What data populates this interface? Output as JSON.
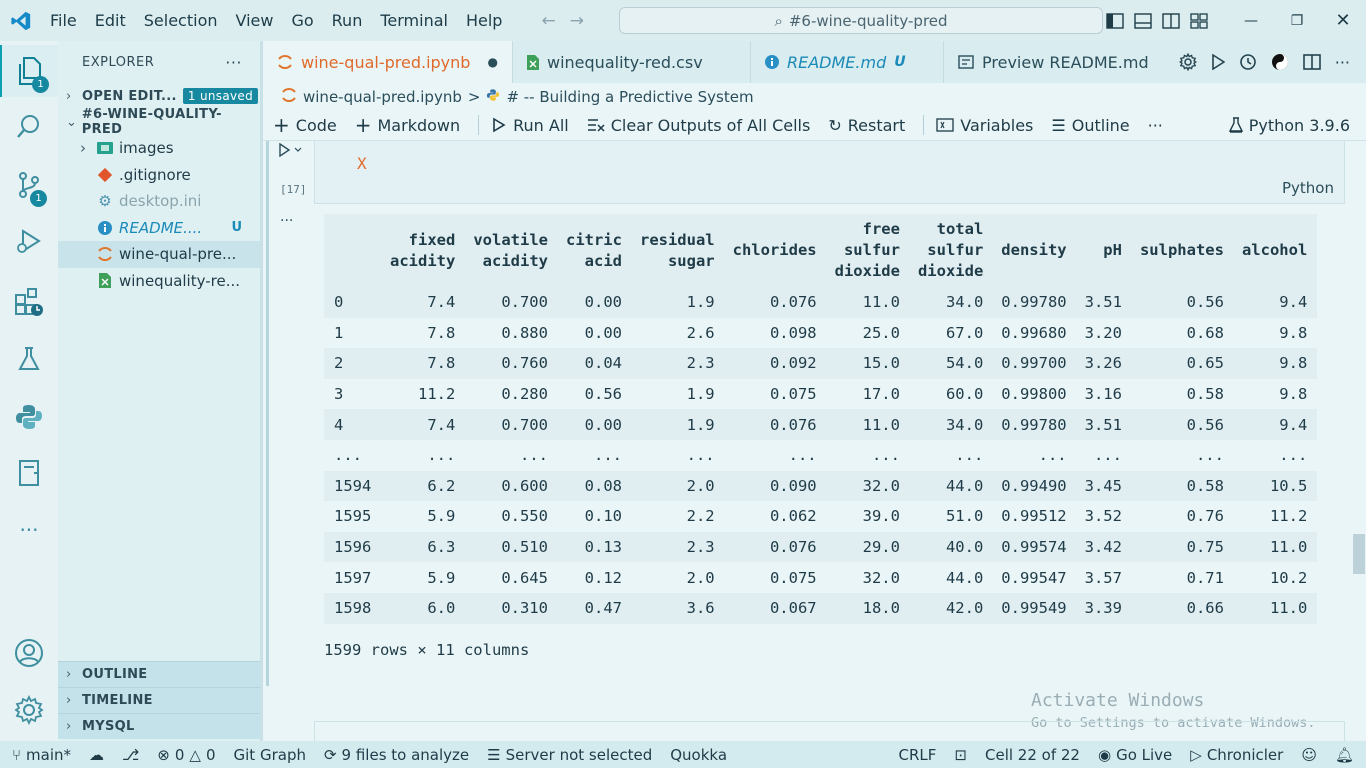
{
  "menu": [
    "File",
    "Edit",
    "Selection",
    "View",
    "Go",
    "Run",
    "Terminal",
    "Help"
  ],
  "search": {
    "text": "#6-wine-quality-pred"
  },
  "sidebar": {
    "title": "EXPLORER",
    "open_editors": "OPEN EDIT...",
    "unsaved": "1 unsaved",
    "folder": "#6-WINE-QUALITY-PRED",
    "items": [
      {
        "label": "images"
      },
      {
        "label": ".gitignore"
      },
      {
        "label": "desktop.ini"
      },
      {
        "label": "README....",
        "status": "U"
      },
      {
        "label": "wine-qual-pre..."
      },
      {
        "label": "winequality-re..."
      }
    ],
    "outline": "OUTLINE",
    "timeline": "TIMELINE",
    "mysql": "MYSQL"
  },
  "activity_badges": {
    "explorer": "1",
    "scm": "1"
  },
  "tabs": [
    {
      "label": "wine-qual-pred.ipynb",
      "modified_dot": "●"
    },
    {
      "label": "winequality-red.csv"
    },
    {
      "label": "README.md",
      "status": "U"
    },
    {
      "label": "Preview README.md"
    }
  ],
  "breadcrumb": {
    "file": "wine-qual-pred.ipynb",
    "sep": ">",
    "section": "# -- Building a Predictive System"
  },
  "toolbar": {
    "code": "Code",
    "markdown": "Markdown",
    "run_all": "Run All",
    "clear_outputs": "Clear Outputs of All Cells",
    "restart": "Restart",
    "variables": "Variables",
    "outline": "Outline",
    "more": "···",
    "kernel": "Python 3.9.6"
  },
  "cell": {
    "code": "X",
    "language": "Python",
    "exec_count": "[17]",
    "output_more": "···"
  },
  "dataframe": {
    "columns": [
      [
        "fixed",
        "acidity"
      ],
      [
        "volatile",
        "acidity"
      ],
      [
        "citric",
        "acid"
      ],
      [
        "residual",
        "sugar"
      ],
      [
        "chlorides"
      ],
      [
        "free",
        "sulfur",
        "dioxide"
      ],
      [
        "total",
        "sulfur",
        "dioxide"
      ],
      [
        "density"
      ],
      [
        "pH"
      ],
      [
        "sulphates"
      ],
      [
        "alcohol"
      ]
    ],
    "rows": [
      [
        "0",
        "7.4",
        "0.700",
        "0.00",
        "1.9",
        "0.076",
        "11.0",
        "34.0",
        "0.99780",
        "3.51",
        "0.56",
        "9.4"
      ],
      [
        "1",
        "7.8",
        "0.880",
        "0.00",
        "2.6",
        "0.098",
        "25.0",
        "67.0",
        "0.99680",
        "3.20",
        "0.68",
        "9.8"
      ],
      [
        "2",
        "7.8",
        "0.760",
        "0.04",
        "2.3",
        "0.092",
        "15.0",
        "54.0",
        "0.99700",
        "3.26",
        "0.65",
        "9.8"
      ],
      [
        "3",
        "11.2",
        "0.280",
        "0.56",
        "1.9",
        "0.075",
        "17.0",
        "60.0",
        "0.99800",
        "3.16",
        "0.58",
        "9.8"
      ],
      [
        "4",
        "7.4",
        "0.700",
        "0.00",
        "1.9",
        "0.076",
        "11.0",
        "34.0",
        "0.99780",
        "3.51",
        "0.56",
        "9.4"
      ],
      [
        "...",
        "...",
        "...",
        "...",
        "...",
        "...",
        "...",
        "...",
        "...",
        "...",
        "...",
        "..."
      ],
      [
        "1594",
        "6.2",
        "0.600",
        "0.08",
        "2.0",
        "0.090",
        "32.0",
        "44.0",
        "0.99490",
        "3.45",
        "0.58",
        "10.5"
      ],
      [
        "1595",
        "5.9",
        "0.550",
        "0.10",
        "2.2",
        "0.062",
        "39.0",
        "51.0",
        "0.99512",
        "3.52",
        "0.76",
        "11.2"
      ],
      [
        "1596",
        "6.3",
        "0.510",
        "0.13",
        "2.3",
        "0.076",
        "29.0",
        "40.0",
        "0.99574",
        "3.42",
        "0.75",
        "11.0"
      ],
      [
        "1597",
        "5.9",
        "0.645",
        "0.12",
        "2.0",
        "0.075",
        "32.0",
        "44.0",
        "0.99547",
        "3.57",
        "0.71",
        "10.2"
      ],
      [
        "1598",
        "6.0",
        "0.310",
        "0.47",
        "3.6",
        "0.067",
        "18.0",
        "42.0",
        "0.99549",
        "3.39",
        "0.66",
        "11.0"
      ]
    ],
    "summary": "1599 rows × 11 columns"
  },
  "watermark": {
    "line1": "Activate Windows",
    "line2": "Go to Settings to activate Windows."
  },
  "statusbar": {
    "branch": "main*",
    "errors": "0",
    "warnings": "0",
    "git_graph": "Git Graph",
    "files": "9 files to analyze",
    "server": "Server not selected",
    "quokka": "Quokka",
    "eol": "CRLF",
    "cell": "Cell 22 of 22",
    "golive": "Go Live",
    "chronicler": "Chronicler"
  }
}
